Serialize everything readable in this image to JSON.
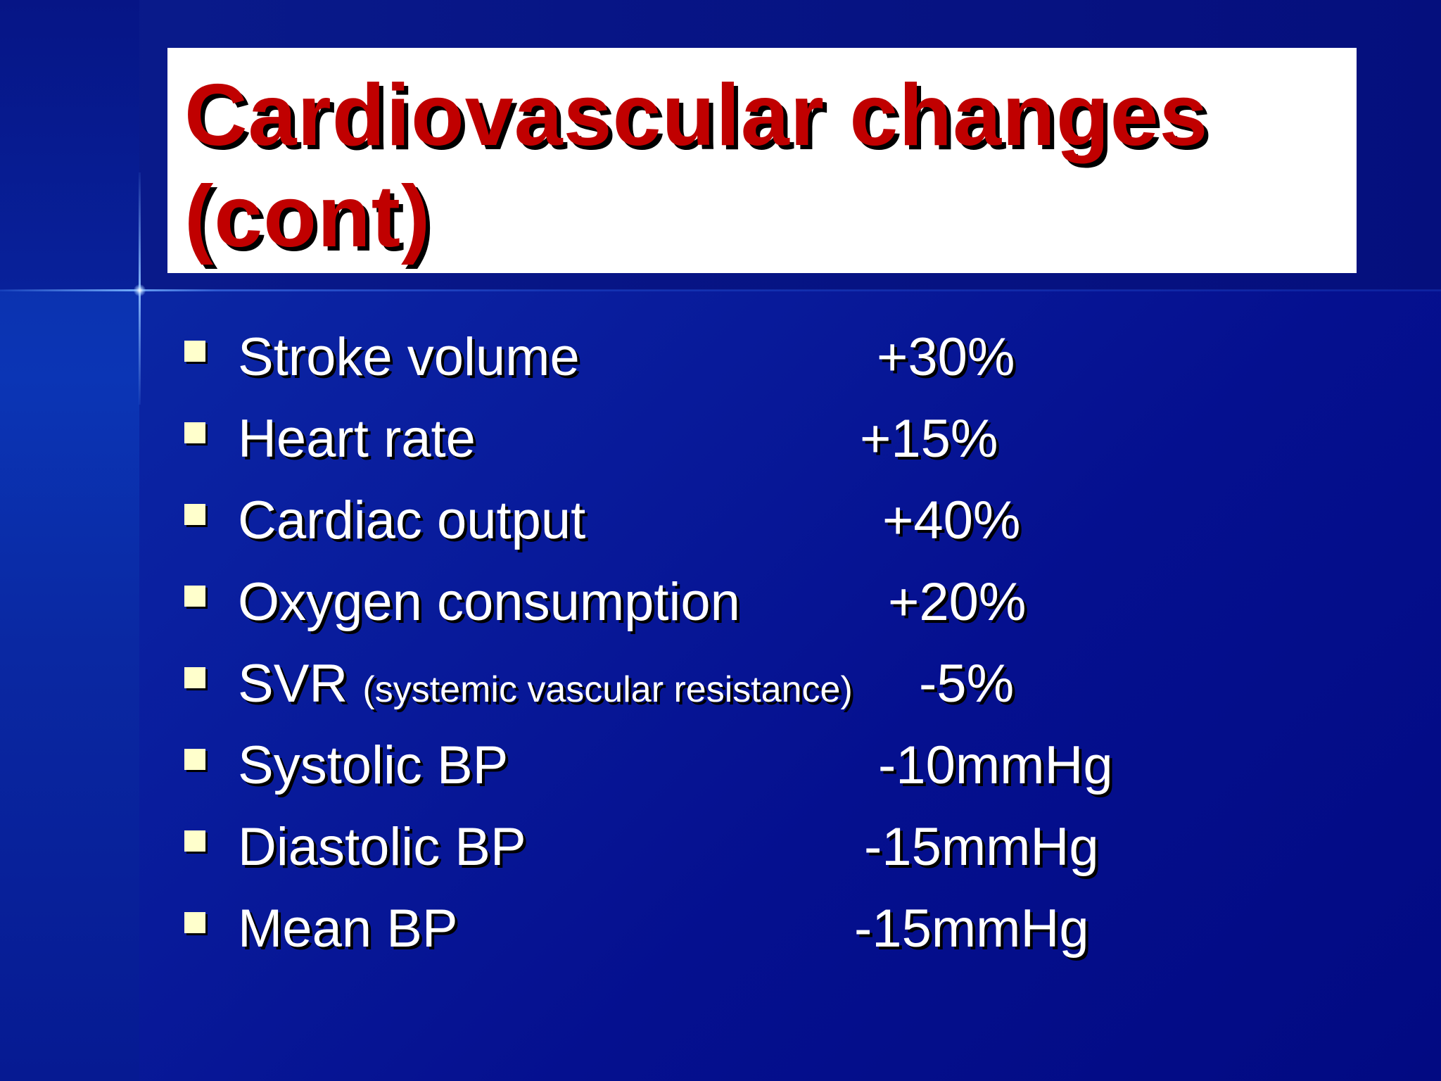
{
  "slide": {
    "title": "Cardiovascular changes (cont)",
    "items": [
      {
        "label": "Stroke volume",
        "note": "",
        "value": "+30%"
      },
      {
        "label": "Heart rate",
        "note": "",
        "value": "+15%"
      },
      {
        "label": "Cardiac output",
        "note": "",
        "value": "+40%"
      },
      {
        "label": "Oxygen consumption",
        "note": "",
        "value": "+20%"
      },
      {
        "label": "SVR ",
        "note": "(systemic vascular resistance)",
        "value": "-5%"
      },
      {
        "label": "Systolic BP",
        "note": "",
        "value": "-10mmHg"
      },
      {
        "label": "Diastolic BP",
        "note": "",
        "value": "-15mmHg"
      },
      {
        "label": "Mean BP",
        "note": "",
        "value": "-15mmHg"
      }
    ]
  },
  "colors": {
    "background": "#05108f",
    "title_text": "#c00000",
    "title_box": "#ffffff",
    "body_text": "#ffffff",
    "bullet": "#ffffcc"
  },
  "icons": {
    "bullet": "square-bullet-icon"
  }
}
